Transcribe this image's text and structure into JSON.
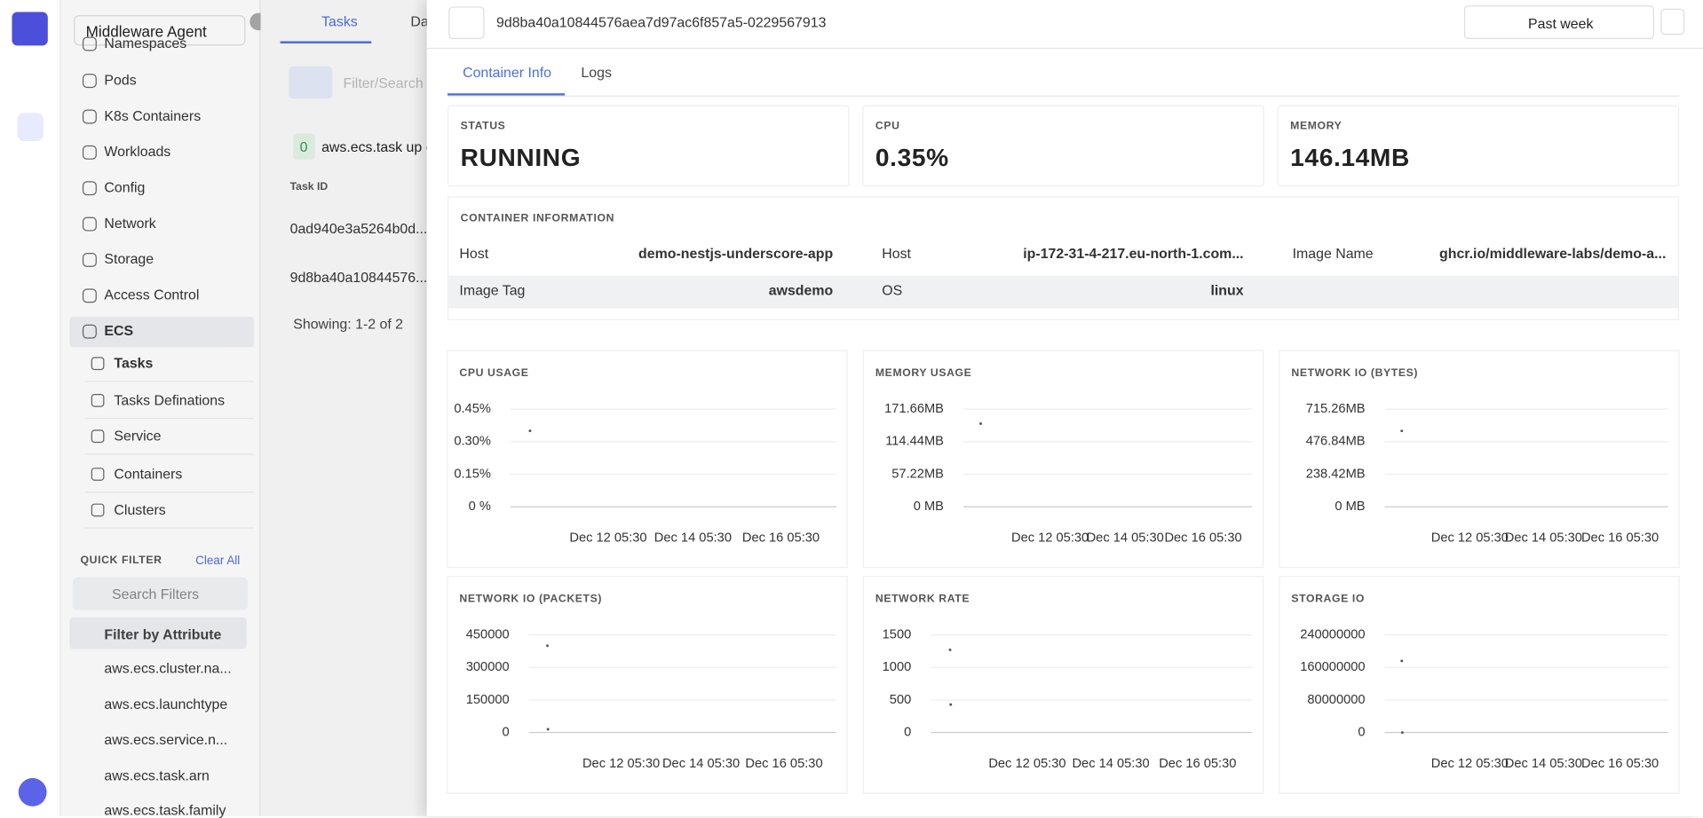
{
  "sidebar": {
    "agent": "Middleware Agent",
    "items": [
      "Namespaces",
      "Pods",
      "K8s Containers",
      "Workloads",
      "Config",
      "Network",
      "Storage",
      "Access Control",
      "ECS"
    ],
    "ecs_items": [
      "Tasks",
      "Tasks Definations",
      "Service",
      "Containers",
      "Clusters"
    ],
    "quick_filter": "QUICK FILTER",
    "clear_all": "Clear All",
    "search_placeholder": "Search Filters",
    "filter_by": "Filter by Attribute",
    "attributes": [
      "aws.ecs.cluster.na...",
      "aws.ecs.launchtype",
      "aws.ecs.service.n...",
      "aws.ecs.task.arn",
      "aws.ecs.task.family"
    ]
  },
  "main": {
    "tabs": [
      "Tasks",
      "Da"
    ],
    "filter_placeholder": "Filter/Search",
    "count": "0",
    "group_label": "aws.ecs.task up c",
    "column": "Task ID",
    "rows": [
      "0ad940e3a5264b0d...",
      "9d8ba40a10844576..."
    ],
    "showing": "Showing: 1-2 of 2"
  },
  "panel": {
    "title": "9d8ba40a10844576aea7d97ac6f857a5-0229567913",
    "time_range": "Past week",
    "tabs": [
      "Container Info",
      "Logs"
    ],
    "stats": [
      {
        "label": "STATUS",
        "value": "RUNNING"
      },
      {
        "label": "CPU",
        "value": "0.35%"
      },
      {
        "label": "MEMORY",
        "value": "146.14MB"
      }
    ],
    "info_title": "CONTAINER INFORMATION",
    "info": [
      {
        "label": "Host",
        "value": "demo-nestjs-underscore-app"
      },
      {
        "label": "Host",
        "value": "ip-172-31-4-217.eu-north-1.com..."
      },
      {
        "label": "Image Name",
        "value": "ghcr.io/middleware-labs/demo-a..."
      },
      {
        "label": "Image Tag",
        "value": "awsdemo"
      },
      {
        "label": "OS",
        "value": "linux"
      }
    ]
  },
  "charts": [
    {
      "type": "scatter",
      "title": "CPU USAGE",
      "ylim": [
        0,
        0.45
      ],
      "yticks": [
        {
          "value": 0,
          "label": "0 %"
        },
        {
          "value": 0.15,
          "label": "0.15%"
        },
        {
          "value": 0.3,
          "label": "0.30%"
        },
        {
          "value": 0.45,
          "label": "0.45%"
        }
      ],
      "xticks": [
        "Dec 12 05:30",
        "Dec 14 05:30",
        "Dec 16 05:30"
      ],
      "values": [
        0.35
      ]
    },
    {
      "type": "scatter",
      "title": "MEMORY USAGE",
      "ylim": [
        0,
        171.66
      ],
      "yticks": [
        {
          "value": 0,
          "label": "0 MB"
        },
        {
          "value": 57.22,
          "label": "57.22MB"
        },
        {
          "value": 114.44,
          "label": "114.44MB"
        },
        {
          "value": 171.66,
          "label": "171.66MB"
        }
      ],
      "xticks": [
        "Dec 12 05:30",
        "Dec 14 05:30",
        "Dec 16 05:30"
      ],
      "values": [
        146.14
      ]
    },
    {
      "type": "scatter",
      "title": "NETWORK IO (BYTES)",
      "ylim": [
        0,
        715.26
      ],
      "yticks": [
        {
          "value": 0,
          "label": "0 MB"
        },
        {
          "value": 238.42,
          "label": "238.42MB"
        },
        {
          "value": 476.84,
          "label": "476.84MB"
        },
        {
          "value": 715.26,
          "label": "715.26MB"
        }
      ],
      "xticks": [
        "Dec 12 05:30",
        "Dec 14 05:30",
        "Dec 16 05:30"
      ],
      "values": [
        556
      ]
    },
    {
      "type": "scatter",
      "title": "NETWORK IO (PACKETS)",
      "ylim": [
        0,
        450000
      ],
      "yticks": [
        0,
        150000,
        300000,
        450000
      ],
      "xticks": [
        "Dec 12 05:30",
        "Dec 14 05:30",
        "Dec 16 05:30"
      ],
      "values": [
        400000,
        15000
      ]
    },
    {
      "type": "scatter",
      "title": "NETWORK RATE",
      "ylim": [
        0,
        1500
      ],
      "yticks": [
        0,
        500,
        1000,
        1500
      ],
      "xticks": [
        "Dec 12 05:30",
        "Dec 14 05:30",
        "Dec 16 05:30"
      ],
      "values": [
        1270,
        430
      ]
    },
    {
      "type": "scatter",
      "title": "STORAGE IO",
      "ylim": [
        0,
        240000000
      ],
      "yticks": [
        0,
        80000000,
        160000000,
        240000000
      ],
      "xticks": [
        "Dec 12 05:30",
        "Dec 14 05:30",
        "Dec 16 05:30"
      ],
      "values": [
        176000000,
        0
      ]
    }
  ]
}
